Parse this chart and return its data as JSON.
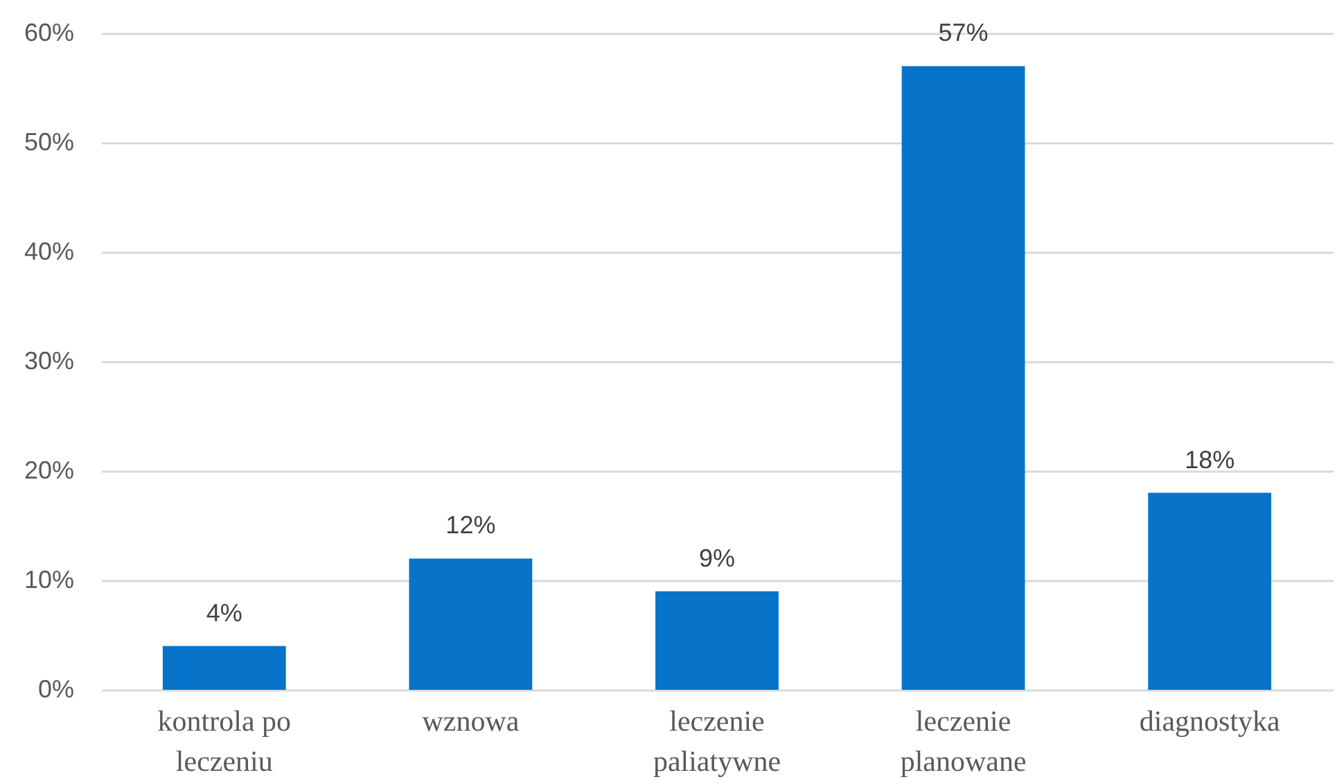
{
  "chart_data": {
    "type": "bar",
    "categories": [
      "kontrola po leczeniu",
      "wznowa",
      "leczenie paliatywne",
      "leczenie planowane",
      "diagnostyka"
    ],
    "values": [
      4,
      12,
      9,
      57,
      18
    ],
    "value_labels": [
      "4%",
      "12%",
      "9%",
      "57%",
      "18%"
    ],
    "color": "#0773c9",
    "ylim": [
      0,
      60
    ],
    "yticks": [
      {
        "value": 0,
        "label": "0%"
      },
      {
        "value": 10,
        "label": "10%"
      },
      {
        "value": 20,
        "label": "20%"
      },
      {
        "value": 30,
        "label": "30%"
      },
      {
        "value": 40,
        "label": "40%"
      },
      {
        "value": 50,
        "label": "50%"
      },
      {
        "value": 60,
        "label": "60%"
      }
    ],
    "grid": "y"
  }
}
